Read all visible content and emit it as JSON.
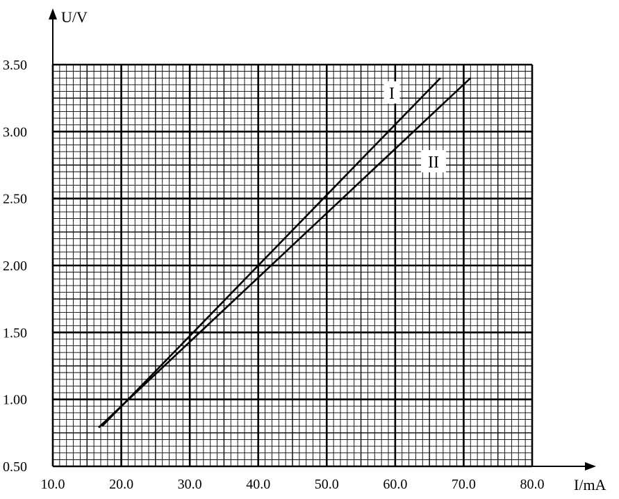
{
  "chart_data": {
    "type": "line",
    "title": "",
    "xlabel": "I/mA",
    "ylabel": "U/V",
    "xlim": [
      10.0,
      80.0
    ],
    "ylim": [
      0.5,
      3.5
    ],
    "x_ticks": [
      "10.0",
      "20.0",
      "30.0",
      "40.0",
      "50.0",
      "60.0",
      "70.0",
      "80.0"
    ],
    "y_ticks": [
      "0.50",
      "1.00",
      "1.50",
      "2.00",
      "2.50",
      "3.00",
      "3.50"
    ],
    "grid": true,
    "grid_minor_steps": {
      "x": 1.0,
      "y": 0.05
    },
    "series": [
      {
        "name": "I",
        "x": [
          17.2,
          66.6
        ],
        "y": [
          0.8,
          3.4
        ],
        "color": "#000000"
      },
      {
        "name": "II",
        "x": [
          16.7,
          71.0
        ],
        "y": [
          0.79,
          3.4
        ],
        "color": "#000000"
      }
    ]
  }
}
